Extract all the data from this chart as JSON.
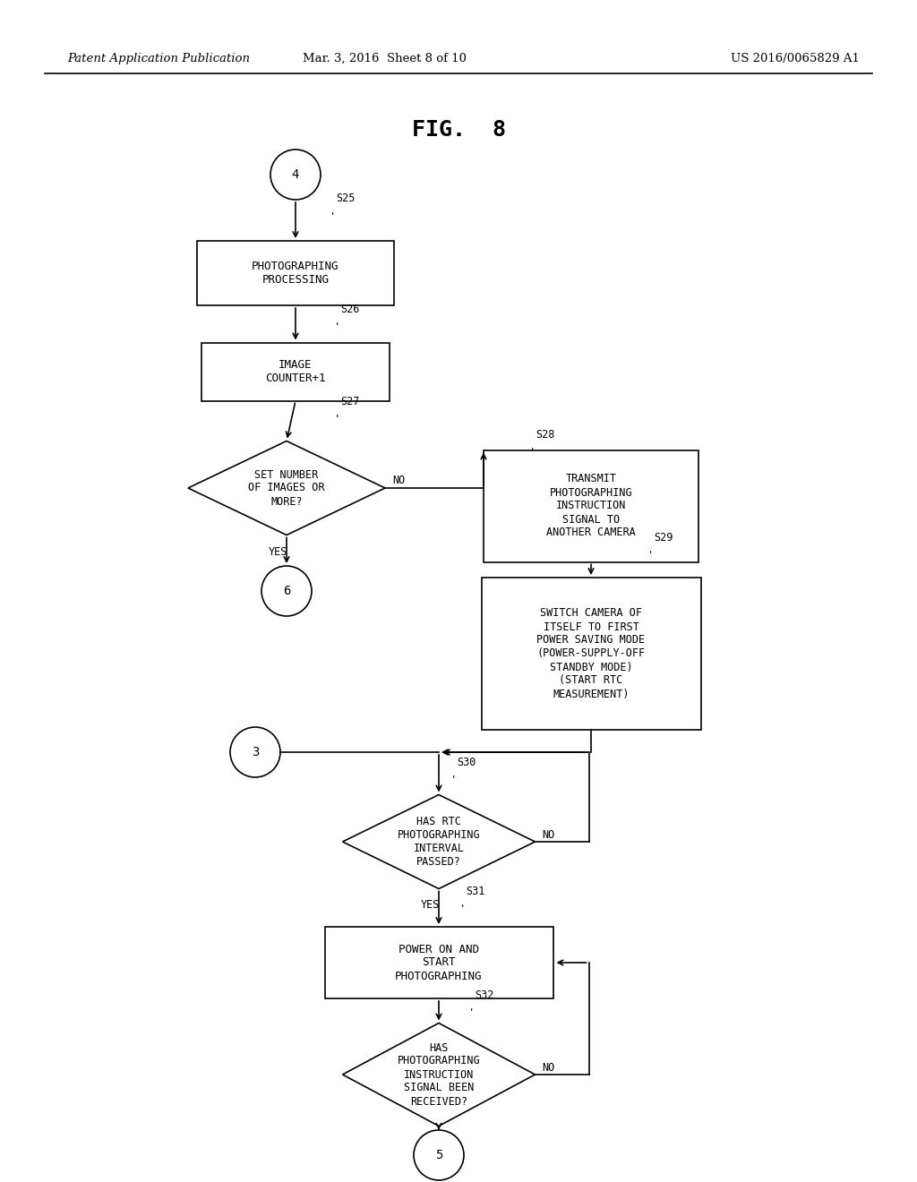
{
  "bg_color": "#ffffff",
  "header_left": "Patent Application Publication",
  "header_mid": "Mar. 3, 2016  Sheet 8 of 10",
  "header_right": "US 2016/0065829 A1",
  "fig_label": "FIG.  8"
}
